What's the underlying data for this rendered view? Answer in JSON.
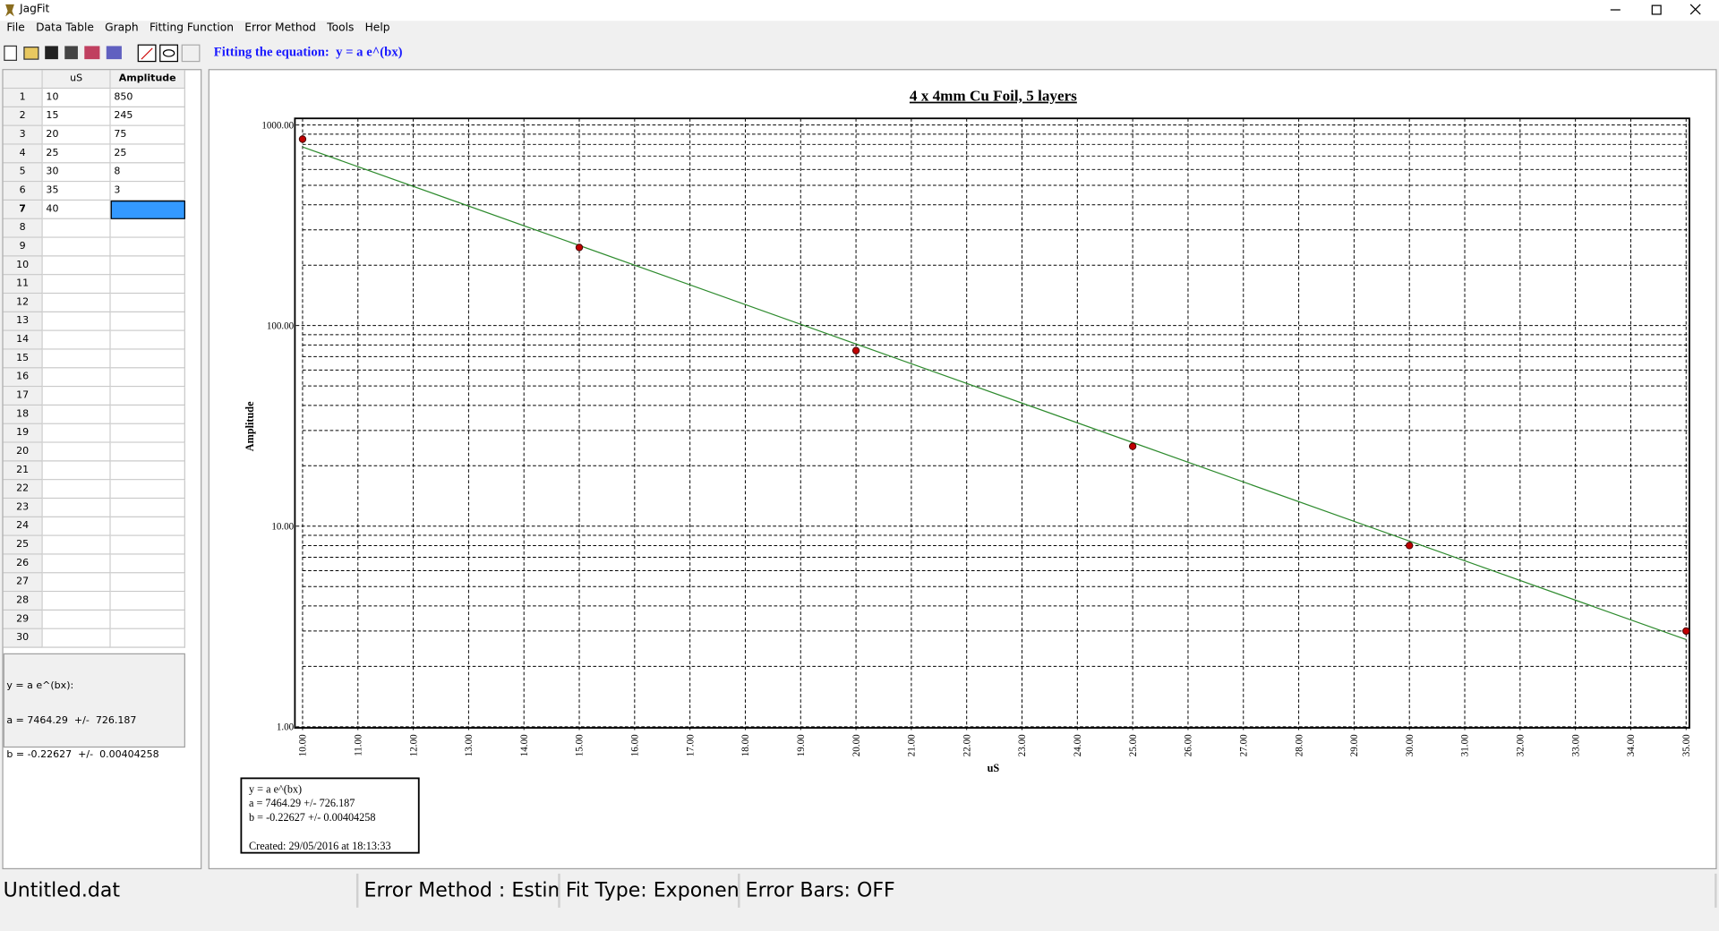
{
  "window": {
    "title": "JagFit"
  },
  "menu": [
    "File",
    "Data Table",
    "Graph",
    "Fitting Function",
    "Error Method",
    "Tools",
    "Help"
  ],
  "toolbar": {
    "label": "Fitting the equation:  y = a e^(bx)"
  },
  "table": {
    "headers": [
      "uS",
      "Amplitude"
    ],
    "rows": [
      {
        "n": 1,
        "x": 10,
        "y": 850
      },
      {
        "n": 2,
        "x": 15,
        "y": 245
      },
      {
        "n": 3,
        "x": 20,
        "y": 75
      },
      {
        "n": 4,
        "x": 25,
        "y": 25
      },
      {
        "n": 5,
        "x": 30,
        "y": 8
      },
      {
        "n": 6,
        "x": 35,
        "y": 3
      },
      {
        "n": 7,
        "x": 40
      },
      {
        "n": 8
      },
      {
        "n": 9
      },
      {
        "n": 10
      },
      {
        "n": 11
      },
      {
        "n": 12
      },
      {
        "n": 13
      },
      {
        "n": 14
      },
      {
        "n": 15
      },
      {
        "n": 16
      },
      {
        "n": 17
      },
      {
        "n": 18
      },
      {
        "n": 19
      },
      {
        "n": 20
      },
      {
        "n": 21
      },
      {
        "n": 22
      },
      {
        "n": 23
      },
      {
        "n": 24
      },
      {
        "n": 25
      },
      {
        "n": 26
      },
      {
        "n": 27
      },
      {
        "n": 28
      },
      {
        "n": 29
      },
      {
        "n": 30
      }
    ]
  },
  "fit_panel": [
    "y = a e^(bx):",
    "a = 7464.29  +/-  726.187",
    "b = -0.22627  +/-  0.00404258"
  ],
  "chart_data": {
    "type": "scatter",
    "title": "4 x 4mm  Cu Foil, 5 layers",
    "x_label": "uS",
    "y_label": "Amplitude",
    "log_y": true,
    "grid": true,
    "minor_grid": true,
    "xlim": [
      10,
      35
    ],
    "xticks": [
      {
        "value": 10,
        "label": "10.00"
      },
      {
        "value": 11,
        "label": "11.00"
      },
      {
        "value": 12,
        "label": "12.00"
      },
      {
        "value": 13,
        "label": "13.00"
      },
      {
        "value": 14,
        "label": "14.00"
      },
      {
        "value": 15,
        "label": "15.00"
      },
      {
        "value": 16,
        "label": "16.00"
      },
      {
        "value": 17,
        "label": "17.00"
      },
      {
        "value": 18,
        "label": "18.00"
      },
      {
        "value": 19,
        "label": "19.00"
      },
      {
        "value": 20,
        "label": "20.00"
      },
      {
        "value": 21,
        "label": "21.00"
      },
      {
        "value": 22,
        "label": "22.00"
      },
      {
        "value": 23,
        "label": "23.00"
      },
      {
        "value": 24,
        "label": "24.00"
      },
      {
        "value": 25,
        "label": "25.00"
      },
      {
        "value": 26,
        "label": "26.00"
      },
      {
        "value": 27,
        "label": "27.00"
      },
      {
        "value": 28,
        "label": "28.00"
      },
      {
        "value": 29,
        "label": "29.00"
      },
      {
        "value": 30,
        "label": "30.00"
      },
      {
        "value": 31,
        "label": "31.00"
      },
      {
        "value": 32,
        "label": "32.00"
      },
      {
        "value": 33,
        "label": "33.00"
      },
      {
        "value": 34,
        "label": "34.00"
      },
      {
        "value": 35,
        "label": "35.00"
      }
    ],
    "ylim": [
      1,
      1000
    ],
    "yticks": [
      {
        "value": 1,
        "label": "1.00"
      },
      {
        "value": 10,
        "label": "10.00"
      },
      {
        "value": 100,
        "label": "100.00"
      },
      {
        "value": 1000,
        "label": "1000.00"
      }
    ],
    "x": [
      10,
      15,
      20,
      25,
      30,
      35
    ],
    "values": [
      850,
      245,
      75,
      25,
      8,
      3
    ],
    "color": "#c00000",
    "fit_line": {
      "x": [
        10,
        35
      ],
      "values": [
        777,
        2.72
      ],
      "color": "#2e8b2e"
    },
    "info_box": [
      "y = a e^(bx)",
      "a = 7464.29 +/- 726.187",
      "b = -0.22627 +/- 0.00404258",
      "Created: 29/05/2016 at 18:13:33"
    ]
  },
  "status": [
    "Untitled.dat",
    "Error Method : Estima",
    "Fit Type: Exponenti",
    "Error Bars: OFF"
  ]
}
